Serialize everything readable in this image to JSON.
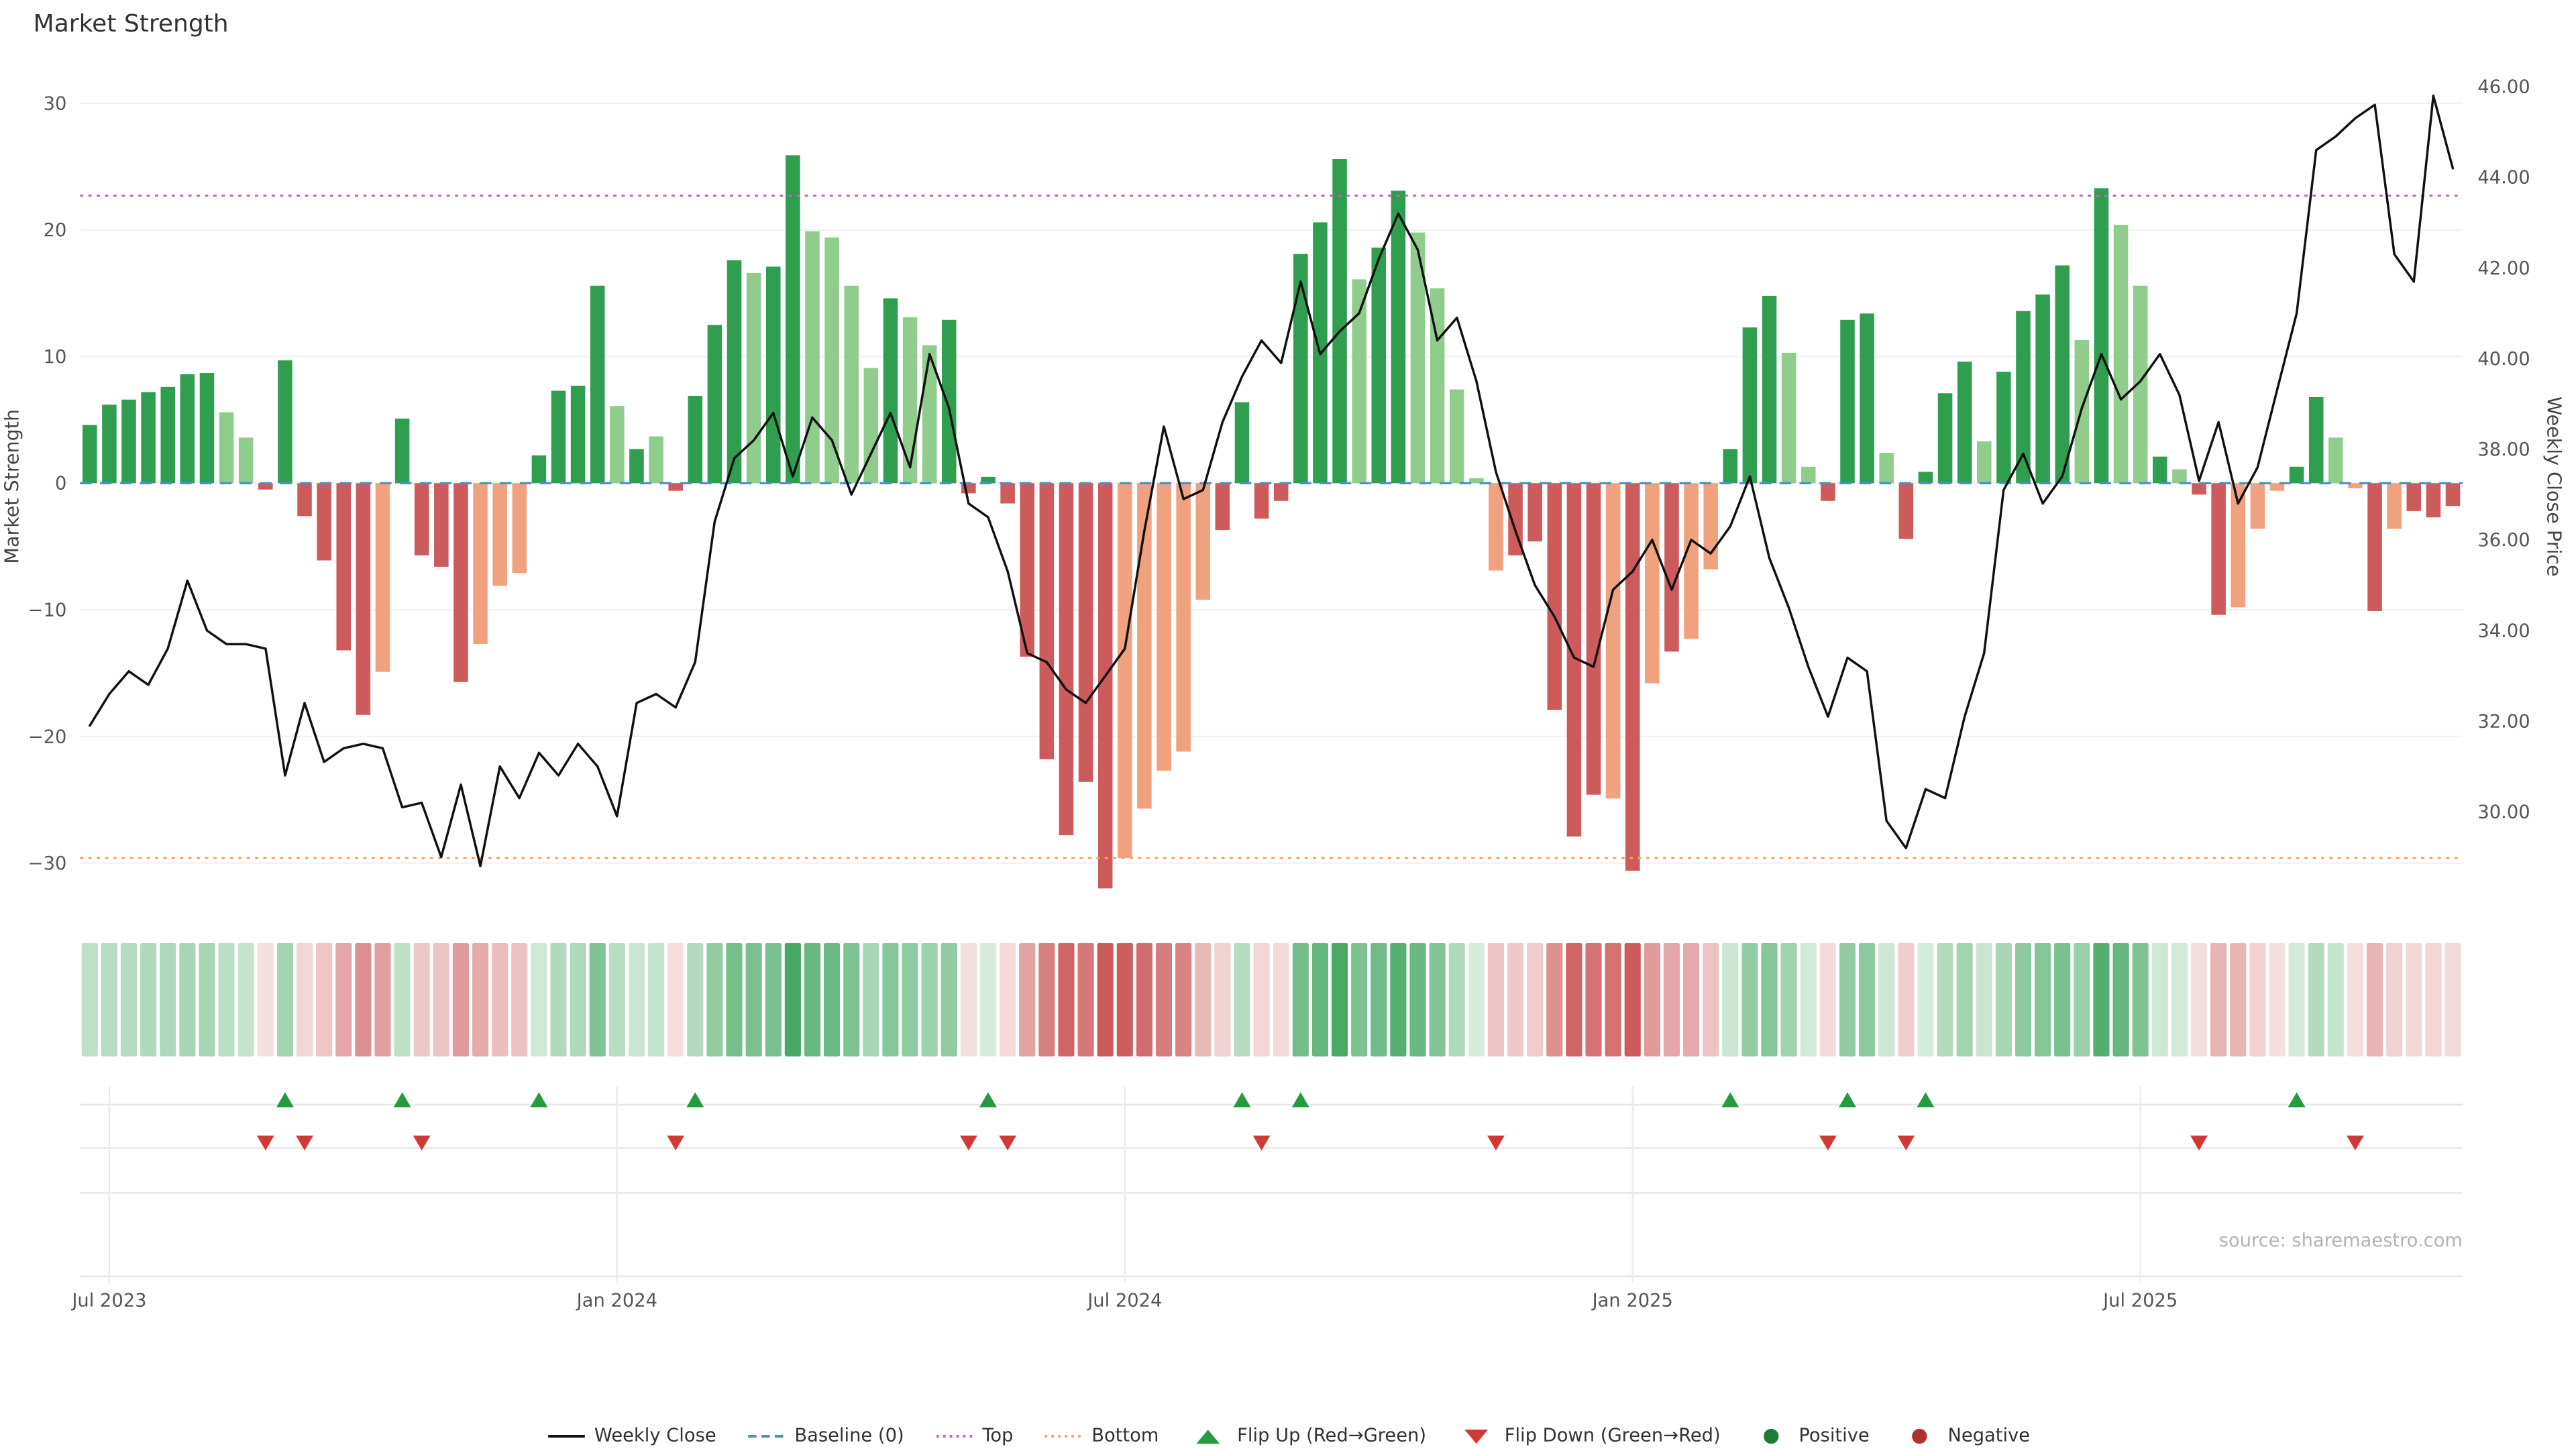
{
  "title": "Market Strength",
  "source": "source: sharemaestro.com",
  "axes": {
    "left_title": "Market Strength",
    "right_title": "Weekly Close Price",
    "left_tick_values": [
      30,
      20,
      10,
      0,
      -10,
      -20,
      -30
    ],
    "left_tick_labels": [
      "30",
      "20",
      "10",
      "0",
      "−10",
      "−20",
      "−30"
    ],
    "right_tick_values": [
      46,
      44,
      42,
      40,
      38,
      36,
      34,
      32,
      30
    ],
    "right_tick_labels": [
      "46.00",
      "44.00",
      "42.00",
      "40.00",
      "38.00",
      "36.00",
      "34.00",
      "32.00",
      "30.00"
    ],
    "x_ticks": [
      {
        "label": "Jul 2023",
        "index": 1
      },
      {
        "label": "Jan 2024",
        "index": 27
      },
      {
        "label": "Jul 2024",
        "index": 53
      },
      {
        "label": "Jan 2025",
        "index": 79
      },
      {
        "label": "Jul 2025",
        "index": 105
      }
    ]
  },
  "colors": {
    "bar_pos": "#2f9e4f",
    "bar_pos_light": "#90cd8c",
    "bar_neg": "#cd5b5b",
    "bar_neg_light": "#f0a17e",
    "price_line": "#111111",
    "baseline": "#4a90c4",
    "top_line": "#b868b8",
    "bottom_line": "#f2a25e",
    "flip_up": "#259b3e",
    "flip_down": "#d03a34",
    "positive_dot": "#1e7a34",
    "negative_dot": "#b03030",
    "grid": "#f2f2f2",
    "strip_grid": "#e7e7e7",
    "tick_text": "#555555"
  },
  "chart_data": [
    {
      "type": "bar",
      "name": "Market Strength",
      "n_points": 122,
      "ylim": [
        -33,
        31
      ],
      "baseline": 0,
      "top_band": 22.7,
      "bottom_band": -29.6,
      "values": [
        4.6,
        6.2,
        6.6,
        7.2,
        7.6,
        8.6,
        8.7,
        5.6,
        3.6,
        -0.5,
        9.7,
        -2.6,
        -6.1,
        -13.2,
        -18.3,
        -14.9,
        5.1,
        -5.7,
        -6.6,
        -15.7,
        -12.7,
        -8.1,
        -7.1,
        2.2,
        7.3,
        7.7,
        15.6,
        6.1,
        2.7,
        3.7,
        -0.6,
        6.9,
        12.5,
        17.6,
        16.6,
        17.1,
        25.9,
        19.9,
        19.4,
        15.6,
        9.1,
        14.6,
        13.1,
        10.9,
        12.9,
        -0.8,
        0.5,
        -1.6,
        -13.7,
        -21.8,
        -27.8,
        -23.6,
        -32.0,
        -29.6,
        -25.7,
        -22.7,
        -21.2,
        -9.2,
        -3.7,
        6.4,
        -2.8,
        -1.4,
        18.1,
        20.6,
        25.6,
        16.1,
        18.6,
        23.1,
        19.8,
        15.4,
        7.4,
        0.4,
        -6.9,
        -5.7,
        -4.6,
        -17.9,
        -27.9,
        -24.6,
        -24.9,
        -30.6,
        -15.8,
        -13.3,
        -12.3,
        -6.8,
        2.7,
        12.3,
        14.8,
        10.3,
        1.3,
        -1.4,
        12.9,
        13.4,
        2.4,
        -4.4,
        0.9,
        7.1,
        9.6,
        3.3,
        8.8,
        13.6,
        14.9,
        17.2,
        11.3,
        23.3,
        20.4,
        15.6,
        2.1,
        1.1,
        -0.9,
        -10.4,
        -9.8,
        -3.6,
        -0.6,
        1.3,
        6.8,
        3.6,
        -0.4,
        -10.1,
        -3.6,
        -2.2,
        -2.7,
        -1.8
      ],
      "shade": [
        "d",
        "d",
        "d",
        "d",
        "d",
        "d",
        "d",
        "l",
        "l",
        "d",
        "d",
        "d",
        "d",
        "d",
        "d",
        "l",
        "d",
        "d",
        "d",
        "d",
        "l",
        "l",
        "l",
        "d",
        "d",
        "d",
        "d",
        "l",
        "d",
        "l",
        "d",
        "d",
        "d",
        "d",
        "l",
        "d",
        "d",
        "l",
        "l",
        "l",
        "l",
        "d",
        "l",
        "l",
        "d",
        "d",
        "d",
        "d",
        "d",
        "d",
        "d",
        "d",
        "d",
        "l",
        "l",
        "l",
        "l",
        "l",
        "d",
        "d",
        "d",
        "d",
        "d",
        "d",
        "d",
        "l",
        "d",
        "d",
        "l",
        "l",
        "l",
        "l",
        "l",
        "d",
        "d",
        "d",
        "d",
        "d",
        "l",
        "d",
        "l",
        "d",
        "l",
        "l",
        "d",
        "d",
        "d",
        "l",
        "l",
        "d",
        "d",
        "d",
        "l",
        "d",
        "d",
        "d",
        "d",
        "l",
        "d",
        "d",
        "d",
        "d",
        "l",
        "d",
        "l",
        "l",
        "d",
        "l",
        "d",
        "d",
        "l",
        "l",
        "l",
        "d",
        "d",
        "l",
        "l",
        "d",
        "l",
        "d",
        "d",
        "d"
      ]
    },
    {
      "type": "line",
      "name": "Weekly Close",
      "n_points": 122,
      "ylim": [
        28.3,
        46.4
      ],
      "values": [
        31.9,
        32.6,
        33.1,
        32.8,
        33.6,
        35.1,
        34.0,
        33.7,
        33.7,
        33.6,
        30.8,
        32.4,
        31.1,
        31.4,
        31.5,
        31.4,
        30.1,
        30.2,
        29.0,
        30.6,
        28.8,
        31.0,
        30.3,
        31.3,
        30.8,
        31.5,
        31.0,
        29.9,
        32.4,
        32.6,
        32.3,
        33.3,
        36.4,
        37.8,
        38.2,
        38.8,
        37.4,
        38.7,
        38.2,
        37.0,
        37.9,
        38.8,
        37.6,
        40.1,
        38.9,
        36.8,
        36.5,
        35.3,
        33.5,
        33.3,
        32.7,
        32.4,
        33.0,
        33.6,
        36.2,
        38.5,
        36.9,
        37.1,
        38.6,
        39.6,
        40.4,
        39.9,
        41.7,
        40.1,
        40.6,
        41.0,
        42.2,
        43.2,
        42.4,
        40.4,
        40.9,
        39.5,
        37.5,
        36.2,
        35.0,
        34.3,
        33.4,
        33.2,
        34.9,
        35.3,
        36.0,
        34.9,
        36.0,
        35.7,
        36.3,
        37.4,
        35.6,
        34.5,
        33.2,
        32.1,
        33.4,
        33.1,
        29.8,
        29.2,
        30.5,
        30.3,
        32.1,
        33.5,
        37.1,
        37.9,
        36.8,
        37.4,
        38.9,
        40.1,
        39.1,
        39.5,
        40.1,
        39.2,
        37.3,
        38.6,
        36.8,
        37.6,
        39.3,
        41.0,
        44.6,
        44.9,
        45.3,
        45.6,
        42.3,
        41.7,
        45.8,
        44.2
      ]
    },
    {
      "type": "heatmap",
      "name": "Strength Heatmap",
      "source_series": "Market Strength",
      "note": "cell color intensity proportional to bar magnitude, green positive / red negative"
    }
  ],
  "flip_markers": {
    "up_indices": [
      10,
      16,
      23,
      31,
      46,
      59,
      62,
      84,
      90,
      94,
      113
    ],
    "down_indices": [
      9,
      11,
      17,
      30,
      45,
      47,
      60,
      72,
      89,
      93,
      108,
      116
    ]
  },
  "legend": {
    "items": [
      {
        "label": "Weekly Close",
        "icon": "line",
        "color": "#111111"
      },
      {
        "label": "Baseline (0)",
        "icon": "dashed-line",
        "color": "#4a90c4"
      },
      {
        "label": "Top",
        "icon": "dotted-line",
        "color": "#b868b8"
      },
      {
        "label": "Bottom",
        "icon": "dotted-line",
        "color": "#f2a25e"
      },
      {
        "label": "Flip Up (Red→Green)",
        "icon": "triangle-up",
        "color": "#259b3e"
      },
      {
        "label": "Flip Down (Green→Red)",
        "icon": "triangle-down",
        "color": "#d03a34"
      },
      {
        "label": "Positive",
        "icon": "dot",
        "color": "#1e7a34"
      },
      {
        "label": "Negative",
        "icon": "dot",
        "color": "#b03030"
      }
    ]
  }
}
